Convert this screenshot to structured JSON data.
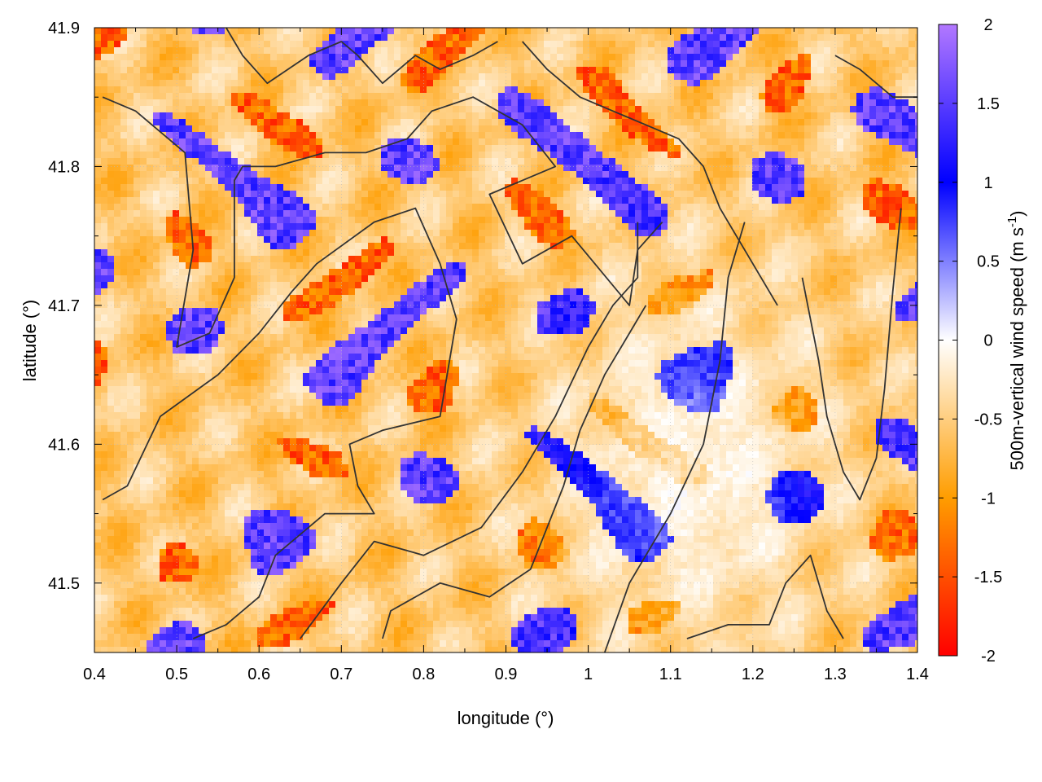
{
  "chart_data": {
    "type": "heatmap",
    "title": "",
    "xlabel": "longitude (°)",
    "ylabel": "latitude (°)",
    "xlim": [
      0.4,
      1.4
    ],
    "ylim": [
      41.45,
      41.9
    ],
    "xticks": [
      0.4,
      0.5,
      0.6,
      0.7,
      0.8,
      0.9,
      1.0,
      1.1,
      1.2,
      1.3,
      1.4
    ],
    "xtick_labels": [
      "0.4",
      "0.5",
      "0.6",
      "0.7",
      "0.8",
      "0.9",
      "1",
      "1.1",
      "1.2",
      "1.3",
      "1.4"
    ],
    "yticks": [
      41.5,
      41.6,
      41.7,
      41.8,
      41.9
    ],
    "ytick_labels": [
      "41.5",
      "41.6",
      "41.7",
      "41.8",
      "41.9"
    ],
    "grid": true,
    "colorbar": {
      "label_main": "500m-vertical wind speed (m s",
      "label_sup": "-1",
      "label_end": ")",
      "range": [
        -2,
        2
      ],
      "ticks": [
        -2,
        -1.5,
        -1,
        -0.5,
        0,
        0.5,
        1,
        1.5,
        2
      ],
      "tick_labels": [
        "-2",
        "-1.5",
        "-1",
        "-0.5",
        "0",
        "0.5",
        "1",
        "1.5",
        "2"
      ],
      "colors": [
        {
          "value": -2.0,
          "color": "#ff0000"
        },
        {
          "value": -1.0,
          "color": "#ff9d00"
        },
        {
          "value": 0.0,
          "color": "#ffffff"
        },
        {
          "value": 1.0,
          "color": "#0000ff"
        },
        {
          "value": 2.0,
          "color": "#b278ff"
        }
      ]
    },
    "contour_color": "#333333",
    "contours": [
      [
        [
          0.41,
          41.56
        ],
        [
          0.44,
          41.57
        ],
        [
          0.48,
          41.62
        ],
        [
          0.55,
          41.65
        ],
        [
          0.6,
          41.68
        ],
        [
          0.64,
          41.71
        ],
        [
          0.67,
          41.73
        ],
        [
          0.74,
          41.76
        ],
        [
          0.79,
          41.77
        ],
        [
          0.82,
          41.73
        ],
        [
          0.84,
          41.69
        ],
        [
          0.82,
          41.62
        ],
        [
          0.75,
          41.61
        ],
        [
          0.71,
          41.6
        ],
        [
          0.72,
          41.57
        ],
        [
          0.74,
          41.55
        ],
        [
          0.68,
          41.55
        ],
        [
          0.62,
          41.52
        ],
        [
          0.6,
          41.49
        ],
        [
          0.56,
          41.47
        ],
        [
          0.52,
          41.46
        ]
      ],
      [
        [
          0.41,
          41.85
        ],
        [
          0.45,
          41.84
        ],
        [
          0.51,
          41.81
        ],
        [
          0.52,
          41.74
        ],
        [
          0.5,
          41.67
        ],
        [
          0.54,
          41.68
        ],
        [
          0.57,
          41.72
        ],
        [
          0.57,
          41.79
        ],
        [
          0.58,
          41.8
        ],
        [
          0.62,
          41.8
        ],
        [
          0.68,
          41.81
        ],
        [
          0.73,
          41.81
        ],
        [
          0.78,
          41.82
        ],
        [
          0.81,
          41.84
        ],
        [
          0.86,
          41.85
        ],
        [
          0.92,
          41.83
        ],
        [
          0.96,
          41.8
        ],
        [
          0.88,
          41.78
        ],
        [
          0.92,
          41.73
        ],
        [
          0.98,
          41.75
        ],
        [
          1.05,
          41.7
        ],
        [
          1.06,
          41.74
        ],
        [
          1.09,
          41.76
        ]
      ],
      [
        [
          0.65,
          41.46
        ],
        [
          0.7,
          41.5
        ],
        [
          0.74,
          41.53
        ],
        [
          0.8,
          41.52
        ],
        [
          0.87,
          41.54
        ],
        [
          0.92,
          41.58
        ],
        [
          0.96,
          41.62
        ],
        [
          1.0,
          41.67
        ],
        [
          1.03,
          41.7
        ],
        [
          1.06,
          41.72
        ],
        [
          1.06,
          41.76
        ]
      ],
      [
        [
          0.75,
          41.46
        ],
        [
          0.76,
          41.48
        ],
        [
          0.82,
          41.5
        ],
        [
          0.88,
          41.49
        ],
        [
          0.93,
          41.51
        ],
        [
          0.97,
          41.57
        ],
        [
          0.99,
          41.61
        ],
        [
          1.02,
          41.65
        ],
        [
          1.05,
          41.68
        ],
        [
          1.07,
          41.7
        ]
      ],
      [
        [
          0.56,
          41.9
        ],
        [
          0.58,
          41.88
        ],
        [
          0.61,
          41.86
        ],
        [
          0.66,
          41.88
        ],
        [
          0.7,
          41.89
        ],
        [
          0.72,
          41.88
        ],
        [
          0.75,
          41.86
        ],
        [
          0.79,
          41.88
        ],
        [
          0.82,
          41.87
        ],
        [
          0.86,
          41.88
        ],
        [
          0.89,
          41.89
        ]
      ],
      [
        [
          0.92,
          41.89
        ],
        [
          0.95,
          41.87
        ],
        [
          0.99,
          41.85
        ],
        [
          1.03,
          41.84
        ],
        [
          1.07,
          41.83
        ],
        [
          1.11,
          41.82
        ],
        [
          1.14,
          41.8
        ],
        [
          1.16,
          41.77
        ],
        [
          1.19,
          41.74
        ],
        [
          1.21,
          41.72
        ],
        [
          1.23,
          41.7
        ]
      ],
      [
        [
          1.02,
          41.45
        ],
        [
          1.05,
          41.5
        ],
        [
          1.1,
          41.55
        ],
        [
          1.14,
          41.6
        ],
        [
          1.16,
          41.66
        ],
        [
          1.17,
          41.72
        ],
        [
          1.19,
          41.76
        ]
      ],
      [
        [
          1.12,
          41.46
        ],
        [
          1.17,
          41.47
        ],
        [
          1.22,
          41.47
        ],
        [
          1.24,
          41.5
        ],
        [
          1.27,
          41.52
        ],
        [
          1.29,
          41.48
        ],
        [
          1.31,
          41.46
        ]
      ],
      [
        [
          1.26,
          41.72
        ],
        [
          1.28,
          41.66
        ],
        [
          1.29,
          41.62
        ],
        [
          1.31,
          41.58
        ],
        [
          1.33,
          41.56
        ],
        [
          1.35,
          41.59
        ],
        [
          1.36,
          41.64
        ],
        [
          1.37,
          41.71
        ],
        [
          1.38,
          41.77
        ]
      ],
      [
        [
          1.3,
          41.88
        ],
        [
          1.33,
          41.87
        ],
        [
          1.37,
          41.85
        ],
        [
          1.4,
          41.85
        ]
      ]
    ]
  }
}
